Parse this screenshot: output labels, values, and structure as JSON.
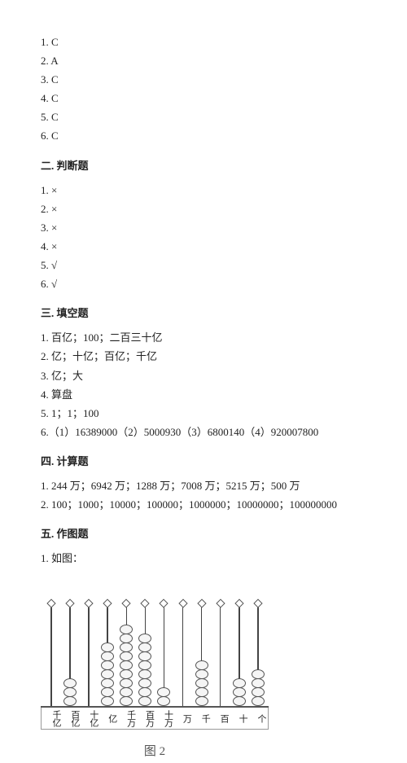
{
  "section1": {
    "items": [
      "1. C",
      "2. A",
      "3.   C",
      "4. C",
      "5. C",
      "6. C"
    ]
  },
  "section2": {
    "title": "二. 判断题",
    "items": [
      "1. ×",
      "2. ×",
      "3. ×",
      "4. ×",
      "5. √",
      "6. √"
    ]
  },
  "section3": {
    "title": "三. 填空题",
    "items": [
      "1. 百亿；100；二百三十亿",
      "2. 亿；十亿；百亿；千亿",
      "3. 亿；大",
      "4. 算盘",
      "5. 1；1；100",
      "6.（1）16389000（2）5000930（3）6800140（4）920007800"
    ]
  },
  "section4": {
    "title": "四. 计算题",
    "items": [
      "1. 244 万；6942 万；1288 万；7008 万；5215 万；500 万",
      "2. 100；1000；10000；100000；1000000；10000000；100000000"
    ]
  },
  "section5": {
    "title": "五. 作图题",
    "items": [
      "1. 如图："
    ]
  },
  "abacus": {
    "caption": "图 2",
    "beads": [
      0,
      3,
      0,
      7,
      9,
      8,
      2,
      0,
      5,
      0,
      3,
      4
    ],
    "labels": [
      "千亿",
      "百亿",
      "十亿",
      "亿",
      "千万",
      "百万",
      "十万",
      "万",
      "千",
      "百",
      "十",
      "个"
    ]
  }
}
